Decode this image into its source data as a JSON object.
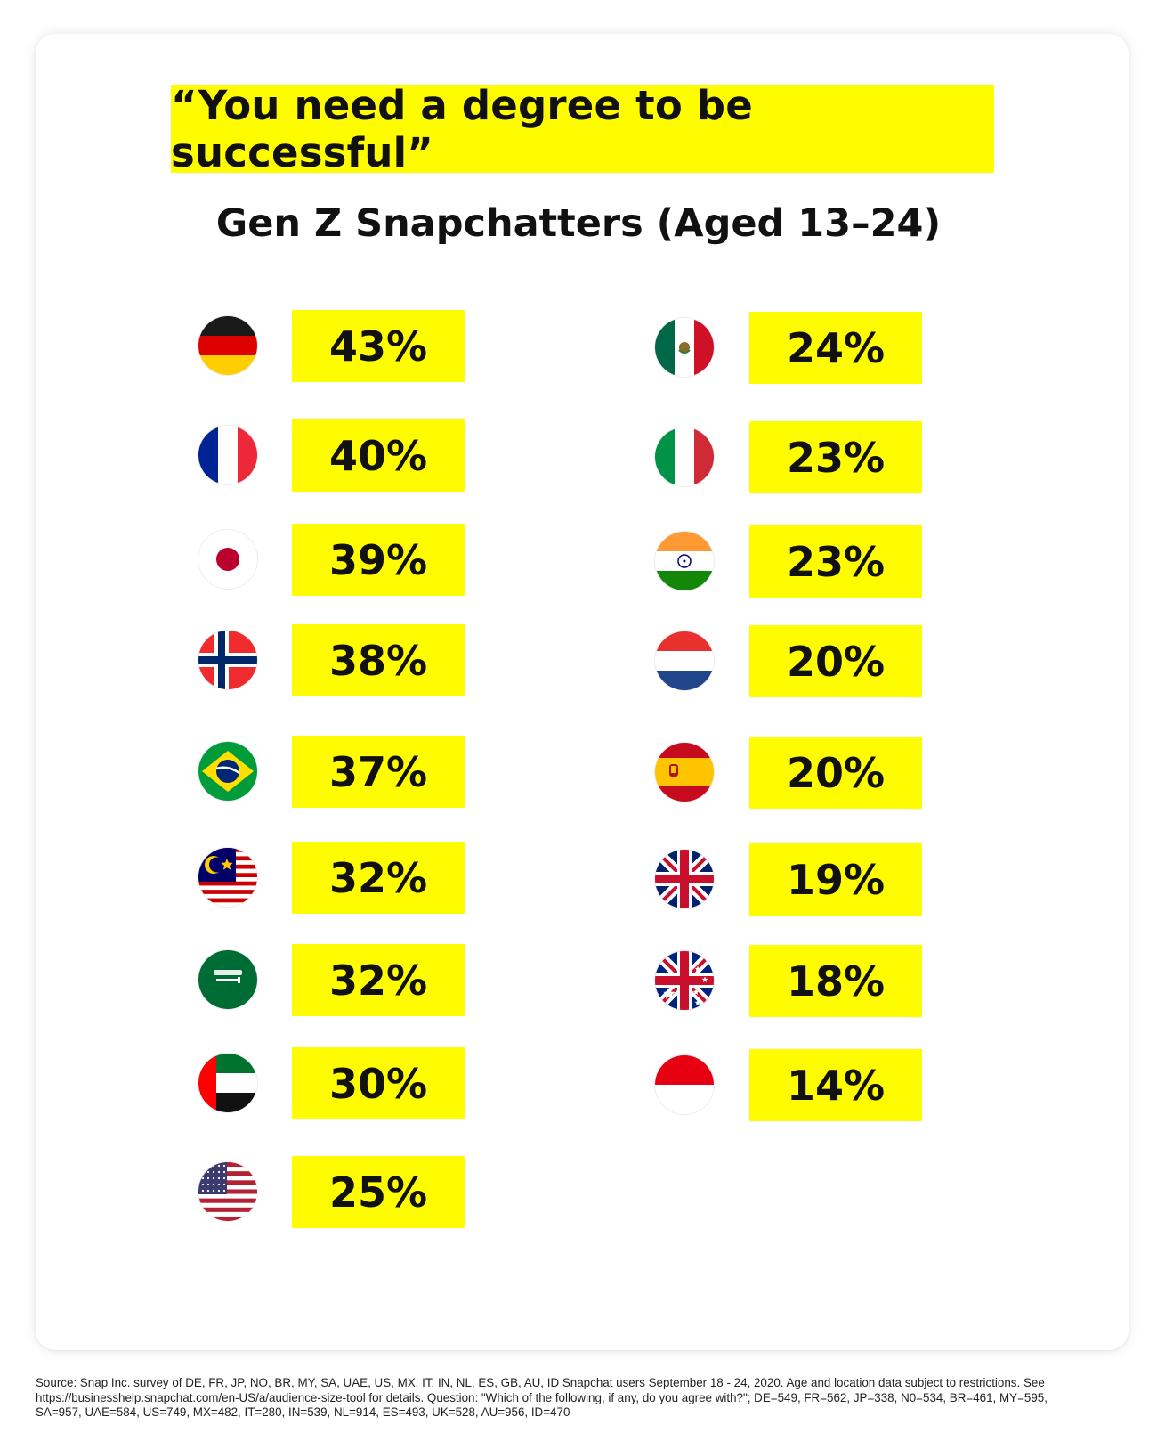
{
  "headline": "“You need a degree to be successful”",
  "subtitle": "Gen Z Snapchatters (Aged 13–24)",
  "chart_data": {
    "type": "table",
    "title": "“You need a degree to be successful”",
    "subtitle": "Gen Z Snapchatters (Aged 13–24)",
    "columns": [
      {
        "name": "left",
        "countries": [
          "DE",
          "FR",
          "JP",
          "NO",
          "BR",
          "MY",
          "SA",
          "UAE",
          "US"
        ],
        "values": [
          "43%",
          "40%",
          "39%",
          "38%",
          "37%",
          "32%",
          "32%",
          "30%",
          "25%"
        ]
      },
      {
        "name": "right",
        "countries": [
          "MX",
          "IT",
          "IN",
          "NL",
          "ES",
          "UK",
          "AU",
          "ID"
        ],
        "values": [
          "24%",
          "23%",
          "23%",
          "20%",
          "20%",
          "19%",
          "18%",
          "14%"
        ]
      }
    ]
  },
  "left": [
    {
      "country": "Germany",
      "flag": "germany-flag-icon",
      "value": "43%"
    },
    {
      "country": "France",
      "flag": "france-flag-icon",
      "value": "40%"
    },
    {
      "country": "Japan",
      "flag": "japan-flag-icon",
      "value": "39%"
    },
    {
      "country": "Norway",
      "flag": "norway-flag-icon",
      "value": "38%"
    },
    {
      "country": "Brazil",
      "flag": "brazil-flag-icon",
      "value": "37%"
    },
    {
      "country": "Malaysia",
      "flag": "malaysia-flag-icon",
      "value": "32%"
    },
    {
      "country": "Saudi Arabia",
      "flag": "saudi-arabia-flag-icon",
      "value": "32%"
    },
    {
      "country": "United Arab Emirates",
      "flag": "uae-flag-icon",
      "value": "30%"
    },
    {
      "country": "United States",
      "flag": "usa-flag-icon",
      "value": "25%"
    }
  ],
  "right": [
    {
      "country": "Mexico",
      "flag": "mexico-flag-icon",
      "value": "24%"
    },
    {
      "country": "Italy",
      "flag": "italy-flag-icon",
      "value": "23%"
    },
    {
      "country": "India",
      "flag": "india-flag-icon",
      "value": "23%"
    },
    {
      "country": "Netherlands",
      "flag": "netherlands-flag-icon",
      "value": "20%"
    },
    {
      "country": "Spain",
      "flag": "spain-flag-icon",
      "value": "20%"
    },
    {
      "country": "United Kingdom",
      "flag": "uk-flag-icon",
      "value": "19%"
    },
    {
      "country": "Australia",
      "flag": "australia-flag-icon",
      "value": "18%"
    },
    {
      "country": "Indonesia",
      "flag": "indonesia-flag-icon",
      "value": "14%"
    }
  ],
  "source_lines": [
    "Source: Snap Inc. survey of DE, FR, JP, NO, BR, MY, SA, UAE, US, MX, IT, IN, NL, ES, GB, AU, ID Snapchat users September 18 - 24, 2020. Age and location data subject to restrictions. See",
    "https://businesshelp.snapchat.com/en-US/a/audience-size-tool for details. Question: \"Which of the following, if any, do you agree with?\"; DE=549, FR=562, JP=338, N0=534, BR=461, MY=595,",
    "SA=957, UAE=584, US=749, MX=482, IT=280, IN=539, NL=914, ES=493, UK=528, AU=956, ID=470"
  ],
  "colors": {
    "accent": "#FFFC00",
    "text": "#111111"
  }
}
